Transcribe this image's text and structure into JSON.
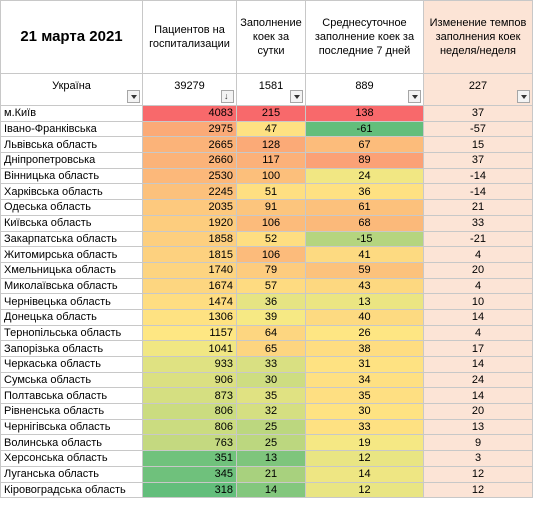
{
  "header": {
    "date": "21 марта 2021",
    "col_patients": "Пациентов на госпитализации",
    "col_daily": "Заполнение коек за сутки",
    "col_avg7": "Среднесуточное заполнение коек за последние 7 дней",
    "col_change": "Изменение темпов заполнения коек неделя/неделя"
  },
  "ukraine": {
    "label": "Україна",
    "patients": "39279",
    "daily": "1581",
    "avg7": "889",
    "change": "227"
  },
  "colors": {
    "red": "#f8696b",
    "yellow": "#ffeb84",
    "green": "#63be7b",
    "change_bg": "#fce4d6"
  },
  "rows": [
    {
      "region": "м.Київ",
      "patients": "4083",
      "daily": "215",
      "avg7": "138",
      "change": "37",
      "c1": "#f8696b",
      "c2": "#f8696b",
      "c3": "#f8696b"
    },
    {
      "region": "Івано-Франківська",
      "patients": "2975",
      "daily": "47",
      "avg7": "-61",
      "change": "-57",
      "c1": "#fbaa77",
      "c2": "#fee182",
      "c3": "#63be7b"
    },
    {
      "region": "Львівська область",
      "patients": "2665",
      "daily": "128",
      "avg7": "67",
      "change": "15",
      "c1": "#fbb379",
      "c2": "#fbaa77",
      "c3": "#fcbc7b"
    },
    {
      "region": "Дніпропетровська",
      "patients": "2660",
      "daily": "117",
      "avg7": "89",
      "change": "37",
      "c1": "#fbb379",
      "c2": "#fcb179",
      "c3": "#fba176"
    },
    {
      "region": "Вінницька область",
      "patients": "2530",
      "daily": "100",
      "avg7": "24",
      "change": "-14",
      "c1": "#fcb87a",
      "c2": "#fcbf7b",
      "c3": "#f1e783"
    },
    {
      "region": "Харківська область",
      "patients": "2245",
      "daily": "51",
      "avg7": "36",
      "change": "-14",
      "c1": "#fcc17c",
      "c2": "#fedf81",
      "c3": "#fee182"
    },
    {
      "region": "Одеська область",
      "patients": "2035",
      "daily": "91",
      "avg7": "61",
      "change": "21",
      "c1": "#fdc97e",
      "c2": "#fcc57d",
      "c3": "#fcc17c"
    },
    {
      "region": "Київська область",
      "patients": "1920",
      "daily": "106",
      "avg7": "68",
      "change": "33",
      "c1": "#fdcd7e",
      "c2": "#fcbb7b",
      "c3": "#fbb97a"
    },
    {
      "region": "Закарпатська область",
      "patients": "1858",
      "daily": "52",
      "avg7": "-15",
      "change": "-21",
      "c1": "#fdcf7f",
      "c2": "#fede81",
      "c3": "#b5d57f"
    },
    {
      "region": "Житомирська область",
      "patients": "1815",
      "daily": "106",
      "avg7": "41",
      "change": "4",
      "c1": "#fdd17f",
      "c2": "#fcbb7b",
      "c3": "#fdda81"
    },
    {
      "region": "Хмельницька область",
      "patients": "1740",
      "daily": "79",
      "avg7": "59",
      "change": "20",
      "c1": "#fdd480",
      "c2": "#fdcc7e",
      "c3": "#fcc27c"
    },
    {
      "region": "Миколаївська область",
      "patients": "1674",
      "daily": "57",
      "avg7": "43",
      "change": "4",
      "c1": "#fdd680",
      "c2": "#fedb81",
      "c3": "#fdd880"
    },
    {
      "region": "Чернівецька область",
      "patients": "1474",
      "daily": "36",
      "avg7": "13",
      "change": "10",
      "c1": "#fedd81",
      "c2": "#e6e483",
      "c3": "#ebe582"
    },
    {
      "region": "Донецька область",
      "patients": "1306",
      "daily": "39",
      "avg7": "40",
      "change": "14",
      "c1": "#fee282",
      "c2": "#f6e984",
      "c3": "#fdda81"
    },
    {
      "region": "Тернопільська область",
      "patients": "1157",
      "daily": "64",
      "avg7": "26",
      "change": "4",
      "c1": "#fee783",
      "c2": "#fdd680",
      "c3": "#fee683"
    },
    {
      "region": "Запорізька область",
      "patients": "1041",
      "daily": "65",
      "avg7": "38",
      "change": "17",
      "c1": "#f1e783",
      "c2": "#fdd580",
      "c3": "#fedd81"
    },
    {
      "region": "Черкаська область",
      "patients": "933",
      "daily": "33",
      "avg7": "31",
      "change": "14",
      "c1": "#dfe282",
      "c2": "#d9e082",
      "c3": "#fee282"
    },
    {
      "region": "Сумська область",
      "patients": "906",
      "daily": "30",
      "avg7": "34",
      "change": "24",
      "c1": "#dbe081",
      "c2": "#cedd81",
      "c3": "#fee082"
    },
    {
      "region": "Полтавська область",
      "patients": "873",
      "daily": "35",
      "avg7": "35",
      "change": "14",
      "c1": "#d5df81",
      "c2": "#e0e282",
      "c3": "#fedf82"
    },
    {
      "region": "Рівненська область",
      "patients": "806",
      "daily": "32",
      "avg7": "30",
      "change": "20",
      "c1": "#cbdc80",
      "c2": "#d5df81",
      "c3": "#fee382"
    },
    {
      "region": "Чернігівська область",
      "patients": "806",
      "daily": "25",
      "avg7": "33",
      "change": "13",
      "c1": "#cbdc80",
      "c2": "#bcd77f",
      "c3": "#fee182"
    },
    {
      "region": "Волинська область",
      "patients": "763",
      "daily": "25",
      "avg7": "19",
      "change": "9",
      "c1": "#c4d980",
      "c2": "#bcd77f",
      "c3": "#f5e884"
    },
    {
      "region": "Херсонська область",
      "patients": "351",
      "daily": "13",
      "avg7": "12",
      "change": "3",
      "c1": "#70c27c",
      "c2": "#7ec57c",
      "c3": "#e9e583"
    },
    {
      "region": "Луганська область",
      "patients": "345",
      "daily": "21",
      "avg7": "14",
      "change": "12",
      "c1": "#6fc17c",
      "c2": "#a8d17e",
      "c3": "#eee683"
    },
    {
      "region": "Кіровоградська область",
      "patients": "318",
      "daily": "14",
      "avg7": "12",
      "change": "12",
      "c1": "#63be7b",
      "c2": "#83c77d",
      "c3": "#e9e583"
    }
  ]
}
